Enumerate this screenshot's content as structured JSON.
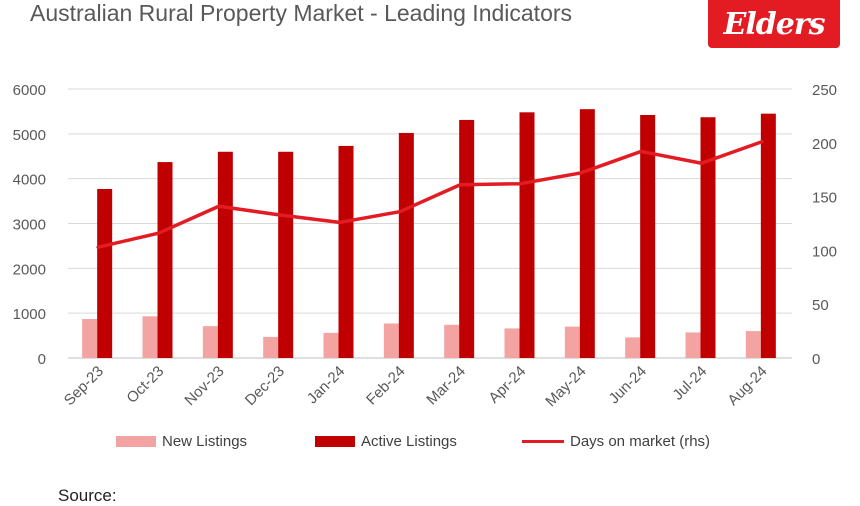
{
  "header": {
    "title": "Australian Rural Property Market - Leading Indicators",
    "logo_text": "Elders"
  },
  "footer": {
    "source_label": "Source:"
  },
  "colors": {
    "new_listings": "#f4a3a3",
    "active_listings": "#c00000",
    "days_on_market": "#e31b23",
    "grid": "#d9d9d9",
    "axis_text": "#595959"
  },
  "chart_data": {
    "type": "bar",
    "title": "Australian Rural Property Market - Leading Indicators",
    "categories": [
      "Sep-23",
      "Oct-23",
      "Nov-23",
      "Dec-23",
      "Jan-24",
      "Feb-24",
      "Mar-24",
      "Apr-24",
      "May-24",
      "Jun-24",
      "Jul-24",
      "Aug-24"
    ],
    "series": [
      {
        "name": "New Listings",
        "type": "bar",
        "axis": "left",
        "values": [
          870,
          930,
          710,
          470,
          560,
          770,
          740,
          660,
          700,
          460,
          570,
          600
        ]
      },
      {
        "name": "Active Listings",
        "type": "bar",
        "axis": "left",
        "values": [
          3770,
          4370,
          4600,
          4600,
          4730,
          5020,
          5310,
          5480,
          5550,
          5420,
          5370,
          5450
        ]
      },
      {
        "name": "Days on market  (rhs)",
        "type": "line",
        "axis": "right",
        "values": [
          103,
          116,
          141,
          133,
          126,
          136,
          161,
          162,
          172,
          192,
          181,
          201
        ]
      }
    ],
    "ylim_left": [
      0,
      6000
    ],
    "yticks_left": [
      "0",
      "1000",
      "2000",
      "3000",
      "4000",
      "5000",
      "6000"
    ],
    "ylim_right": [
      0,
      250
    ],
    "yticks_right": [
      "0",
      "50",
      "100",
      "150",
      "200",
      "250"
    ],
    "grid": true,
    "legend_position": "bottom"
  }
}
